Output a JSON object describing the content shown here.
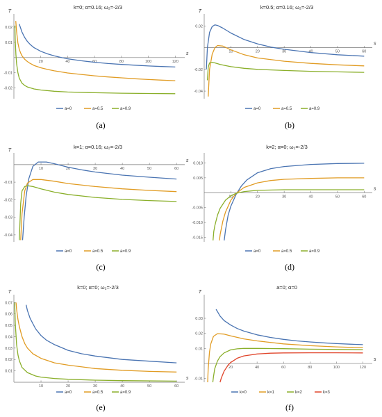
{
  "chart_data": [
    {
      "type": "line",
      "caption": "(a)",
      "title": "k=0; α=0.16; ω₂=-2/3",
      "xlabel": "s",
      "ylabel": "T",
      "xlim": [
        0,
        125
      ],
      "ylim": [
        -0.027,
        0.025
      ],
      "xticks": [
        20,
        40,
        60,
        80,
        100,
        120
      ],
      "xtick_labels": [
        "20",
        "40",
        "60",
        "80",
        "100",
        "120"
      ],
      "yticks": [
        0.02,
        0.01,
        -0.01,
        -0.02
      ],
      "ytick_labels": [
        "0.02",
        "0.01",
        "-0.01",
        "-0.02"
      ],
      "series": [
        {
          "name": "a=0",
          "color": "#4a74b2",
          "x": [
            4,
            6,
            8,
            10,
            12,
            15,
            20,
            25,
            30,
            35,
            40,
            50,
            60,
            70,
            80,
            90,
            100,
            110,
            120
          ],
          "y": [
            0.022,
            0.0168,
            0.0132,
            0.0106,
            0.0087,
            0.0065,
            0.0041,
            0.0024,
            0.0011,
            0.0001,
            -0.0008,
            -0.0021,
            -0.0031,
            -0.0039,
            -0.0045,
            -0.005,
            -0.0055,
            -0.0059,
            -0.0062
          ]
        },
        {
          "name": "a=0.5",
          "color": "#e19c24",
          "x": [
            1.4,
            2,
            3,
            4,
            5,
            6,
            8,
            10,
            12,
            15,
            20,
            25,
            30,
            40,
            50,
            60,
            70,
            80,
            90,
            100,
            110,
            120
          ],
          "y": [
            0.024,
            0.017,
            0.0095,
            0.0055,
            0.003,
            0.0012,
            -0.0011,
            -0.0026,
            -0.0038,
            -0.0052,
            -0.0067,
            -0.0078,
            -0.0087,
            -0.0101,
            -0.0111,
            -0.012,
            -0.0127,
            -0.0133,
            -0.0139,
            -0.0144,
            -0.0148,
            -0.0152
          ]
        },
        {
          "name": "a=0.9",
          "color": "#8aaf2a",
          "x": [
            0.8,
            1,
            1.5,
            2,
            3,
            4,
            6,
            8,
            10,
            15,
            20,
            30,
            40,
            60,
            80,
            100,
            120
          ],
          "y": [
            0.021,
            0.012,
            0.002,
            -0.004,
            -0.01,
            -0.0135,
            -0.0168,
            -0.0183,
            -0.0193,
            -0.0206,
            -0.0213,
            -0.0221,
            -0.0226,
            -0.0231,
            -0.0234,
            -0.0236,
            -0.0237
          ]
        }
      ],
      "legend": "bottom"
    },
    {
      "type": "line",
      "caption": "(b)",
      "title": "k=0.5; α=0.16; ω₂=-2/3",
      "xlabel": "s",
      "ylabel": "T",
      "xlim": [
        0,
        62
      ],
      "ylim": [
        -0.047,
        0.026
      ],
      "xticks": [
        10,
        20,
        30,
        40,
        50,
        60
      ],
      "xtick_labels": [
        "10",
        "20",
        "30",
        "40",
        "50",
        "60"
      ],
      "yticks": [
        0.02,
        -0.02,
        -0.04
      ],
      "ytick_labels": [
        "0.02",
        "-0.02",
        "-0.04"
      ],
      "series": [
        {
          "name": "a=0",
          "color": "#4a74b2",
          "x": [
            0.8,
            1.2,
            2,
            3,
            4,
            5,
            7,
            10,
            15,
            20,
            25,
            30,
            40,
            50,
            60
          ],
          "y": [
            -0.02,
            0.0,
            0.014,
            0.0195,
            0.021,
            0.0205,
            0.018,
            0.0135,
            0.0075,
            0.0035,
            0.0005,
            -0.0015,
            -0.0045,
            -0.0065,
            -0.0078
          ]
        },
        {
          "name": "a=0.5",
          "color": "#e19c24",
          "x": [
            1.5,
            2,
            3,
            4,
            5,
            7,
            10,
            15,
            20,
            30,
            40,
            50,
            60
          ],
          "y": [
            -0.045,
            -0.02,
            -0.006,
            0.0,
            0.002,
            0.0015,
            -0.002,
            -0.0065,
            -0.0095,
            -0.0125,
            -0.0145,
            -0.0158,
            -0.0168
          ]
        },
        {
          "name": "a=0.9",
          "color": "#8aaf2a",
          "x": [
            1.2,
            1.5,
            2,
            3,
            4,
            6,
            8,
            10,
            15,
            20,
            30,
            40,
            50,
            60
          ],
          "y": [
            -0.03,
            -0.018,
            -0.014,
            -0.0135,
            -0.014,
            -0.0155,
            -0.0165,
            -0.0175,
            -0.019,
            -0.02,
            -0.021,
            -0.0218,
            -0.0223,
            -0.0227
          ]
        }
      ],
      "legend": "bottom"
    },
    {
      "type": "line",
      "caption": "(c)",
      "title": "k=1; α=0.16; ω₂=-2/3",
      "xlabel": "s",
      "ylabel": "T",
      "xlim": [
        0,
        62
      ],
      "ylim": [
        -0.044,
        0.0035
      ],
      "xticks": [
        10,
        20,
        30,
        40,
        50,
        60
      ],
      "xtick_labels": [
        "10",
        "20",
        "30",
        "40",
        "50",
        "60"
      ],
      "yticks": [
        -0.01,
        -0.02,
        -0.03,
        -0.04
      ],
      "ytick_labels": [
        "-0.01",
        "-0.02",
        "-0.03",
        "-0.04"
      ],
      "series": [
        {
          "name": "a=0",
          "color": "#4a74b2",
          "x": [
            3.2,
            3.8,
            4.5,
            5.5,
            7,
            9,
            12,
            15,
            20,
            25,
            30,
            40,
            50,
            60
          ],
          "y": [
            -0.043,
            -0.03,
            -0.018,
            -0.008,
            -0.001,
            0.0015,
            0.0015,
            0.0005,
            -0.0015,
            -0.003,
            -0.0042,
            -0.006,
            -0.0072,
            -0.0082
          ]
        },
        {
          "name": "a=0.5",
          "color": "#e19c24",
          "x": [
            2.5,
            3,
            4,
            5,
            7,
            10,
            15,
            20,
            30,
            40,
            50,
            60
          ],
          "y": [
            -0.043,
            -0.028,
            -0.015,
            -0.0105,
            -0.0085,
            -0.0085,
            -0.0095,
            -0.0108,
            -0.0125,
            -0.0138,
            -0.0147,
            -0.0154
          ]
        },
        {
          "name": "a=0.9",
          "color": "#8aaf2a",
          "x": [
            2,
            2.5,
            3,
            4,
            5,
            7,
            10,
            15,
            20,
            30,
            40,
            50,
            60
          ],
          "y": [
            -0.043,
            -0.022,
            -0.015,
            -0.0125,
            -0.012,
            -0.0125,
            -0.0138,
            -0.0157,
            -0.017,
            -0.0187,
            -0.0198,
            -0.0205,
            -0.021
          ]
        }
      ],
      "legend": "bottom"
    },
    {
      "type": "line",
      "caption": "(d)",
      "title": "k=2; α=0; ω₂=-2/3",
      "xlabel": "s",
      "ylabel": "",
      "xlim": [
        0,
        62
      ],
      "ylim": [
        -0.0165,
        0.0115
      ],
      "xticks": [
        10,
        20,
        30,
        40,
        50,
        60
      ],
      "xtick_labels": [
        "10",
        "20",
        "30",
        "40",
        "50",
        "60"
      ],
      "yticks": [
        0.01,
        0.005,
        -0.005,
        -0.01,
        -0.015
      ],
      "ytick_labels": [
        "0.010",
        "0.005",
        "-0.005",
        "-0.010",
        "-0.015"
      ],
      "series": [
        {
          "name": "a=0",
          "color": "#4a74b2",
          "x": [
            7.5,
            8,
            9,
            10,
            12,
            14,
            16,
            20,
            25,
            30,
            40,
            50,
            60
          ],
          "y": [
            -0.016,
            -0.0125,
            -0.0075,
            -0.0045,
            -0.0005,
            0.0023,
            0.0043,
            0.0067,
            0.0081,
            0.0088,
            0.0095,
            0.0098,
            0.0099
          ]
        },
        {
          "name": "a=0.5",
          "color": "#e19c24",
          "x": [
            5.7,
            6,
            7,
            8,
            10,
            12,
            15,
            20,
            25,
            30,
            40,
            50,
            60
          ],
          "y": [
            -0.016,
            -0.014,
            -0.0095,
            -0.0065,
            -0.0025,
            -0.0002,
            0.0018,
            0.0033,
            0.0041,
            0.0045,
            0.0048,
            0.005,
            0.005
          ]
        },
        {
          "name": "a=0.9",
          "color": "#8aaf2a",
          "x": [
            3.3,
            3.6,
            4,
            5,
            6,
            8,
            10,
            12,
            15,
            20,
            30,
            40,
            50,
            60
          ],
          "y": [
            -0.016,
            -0.013,
            -0.011,
            -0.0075,
            -0.0052,
            -0.0025,
            -0.001,
            -0.0002,
            0.0004,
            0.0008,
            0.001,
            0.001,
            0.001,
            0.001
          ]
        }
      ],
      "legend": "bottom"
    },
    {
      "type": "line",
      "caption": "(e)",
      "title": "k=0; α=0; ω₂=-2/3",
      "xlabel": "s",
      "ylabel": "T",
      "xlim": [
        0,
        62
      ],
      "ylim": [
        0,
        0.072
      ],
      "xticks": [
        10,
        20,
        30,
        40,
        50,
        60
      ],
      "xtick_labels": [
        "10",
        "20",
        "30",
        "40",
        "50",
        "60"
      ],
      "yticks": [
        0.07,
        0.06,
        0.05,
        0.04,
        0.03,
        0.02,
        0.01
      ],
      "ytick_labels": [
        "0.07",
        "0.06",
        "0.05",
        "0.04",
        "0.03",
        "0.02",
        "0.01"
      ],
      "series": [
        {
          "name": "a=0",
          "color": "#4a74b2",
          "x": [
            4.5,
            5,
            6,
            8,
            10,
            12,
            15,
            20,
            25,
            30,
            40,
            50,
            60
          ],
          "y": [
            0.068,
            0.063,
            0.056,
            0.047,
            0.041,
            0.037,
            0.033,
            0.028,
            0.025,
            0.023,
            0.02,
            0.0185,
            0.017
          ]
        },
        {
          "name": "a=0.5",
          "color": "#e19c24",
          "x": [
            0.8,
            1,
            1.5,
            2,
            3,
            4,
            5,
            7,
            10,
            15,
            20,
            30,
            40,
            50,
            60
          ],
          "y": [
            0.07,
            0.064,
            0.055,
            0.049,
            0.04,
            0.034,
            0.03,
            0.025,
            0.021,
            0.017,
            0.015,
            0.012,
            0.0105,
            0.0095,
            0.009
          ]
        },
        {
          "name": "a=0.9",
          "color": "#8aaf2a",
          "x": [
            0.3,
            0.5,
            1,
            1.5,
            2,
            3,
            5,
            8,
            10,
            15,
            20,
            30,
            40,
            60
          ],
          "y": [
            0.07,
            0.052,
            0.033,
            0.024,
            0.019,
            0.013,
            0.0085,
            0.0055,
            0.0045,
            0.0033,
            0.0026,
            0.0018,
            0.0014,
            0.001
          ]
        }
      ],
      "legend": "bottom"
    },
    {
      "type": "line",
      "caption": "(f)",
      "title": "a=0; α=0",
      "xlabel": "s",
      "ylabel": "T",
      "xlim": [
        0,
        125
      ],
      "ylim": [
        -0.0125,
        0.042
      ],
      "xticks": [
        20,
        40,
        60,
        80,
        100,
        120
      ],
      "xtick_labels": [
        "20",
        "40",
        "60",
        "80",
        "100",
        "120"
      ],
      "yticks": [
        0.03,
        0.02,
        0.01,
        -0.01
      ],
      "ytick_labels": [
        "0.03",
        "0.02",
        "0.01",
        "-0.01"
      ],
      "series": [
        {
          "name": "k=0",
          "color": "#4a74b2",
          "x": [
            9,
            10,
            12,
            15,
            20,
            25,
            30,
            40,
            50,
            60,
            70,
            80,
            90,
            100,
            110,
            120
          ],
          "y": [
            0.036,
            0.0345,
            0.0315,
            0.0285,
            0.0255,
            0.0232,
            0.0215,
            0.019,
            0.0173,
            0.016,
            0.015,
            0.0143,
            0.0137,
            0.0132,
            0.0128,
            0.0125
          ]
        },
        {
          "name": "k=1",
          "color": "#e19c24",
          "x": [
            2.6,
            3,
            4,
            5,
            7,
            10,
            15,
            20,
            30,
            40,
            60,
            80,
            100,
            120
          ],
          "y": [
            -0.0125,
            -0.004,
            0.0075,
            0.013,
            0.018,
            0.0198,
            0.0195,
            0.0183,
            0.0163,
            0.015,
            0.013,
            0.0118,
            0.011,
            0.0104
          ]
        },
        {
          "name": "k=2",
          "color": "#8aaf2a",
          "x": [
            6.5,
            7,
            8,
            10,
            12,
            15,
            20,
            25,
            30,
            40,
            50,
            60,
            80,
            100,
            120
          ],
          "y": [
            -0.0125,
            -0.009,
            -0.0035,
            0.0015,
            0.0045,
            0.007,
            0.009,
            0.0097,
            0.01,
            0.01,
            0.0099,
            0.0098,
            0.0095,
            0.0093,
            0.0091
          ]
        },
        {
          "name": "k=3",
          "color": "#e0452b",
          "x": [
            12,
            13,
            15,
            18,
            20,
            25,
            30,
            40,
            50,
            60,
            80,
            100,
            120
          ],
          "y": [
            -0.0125,
            -0.0095,
            -0.0052,
            -0.0012,
            0.0006,
            0.0035,
            0.005,
            0.0063,
            0.0068,
            0.007,
            0.0071,
            0.0071,
            0.007
          ]
        }
      ],
      "legend": "bottom"
    }
  ]
}
